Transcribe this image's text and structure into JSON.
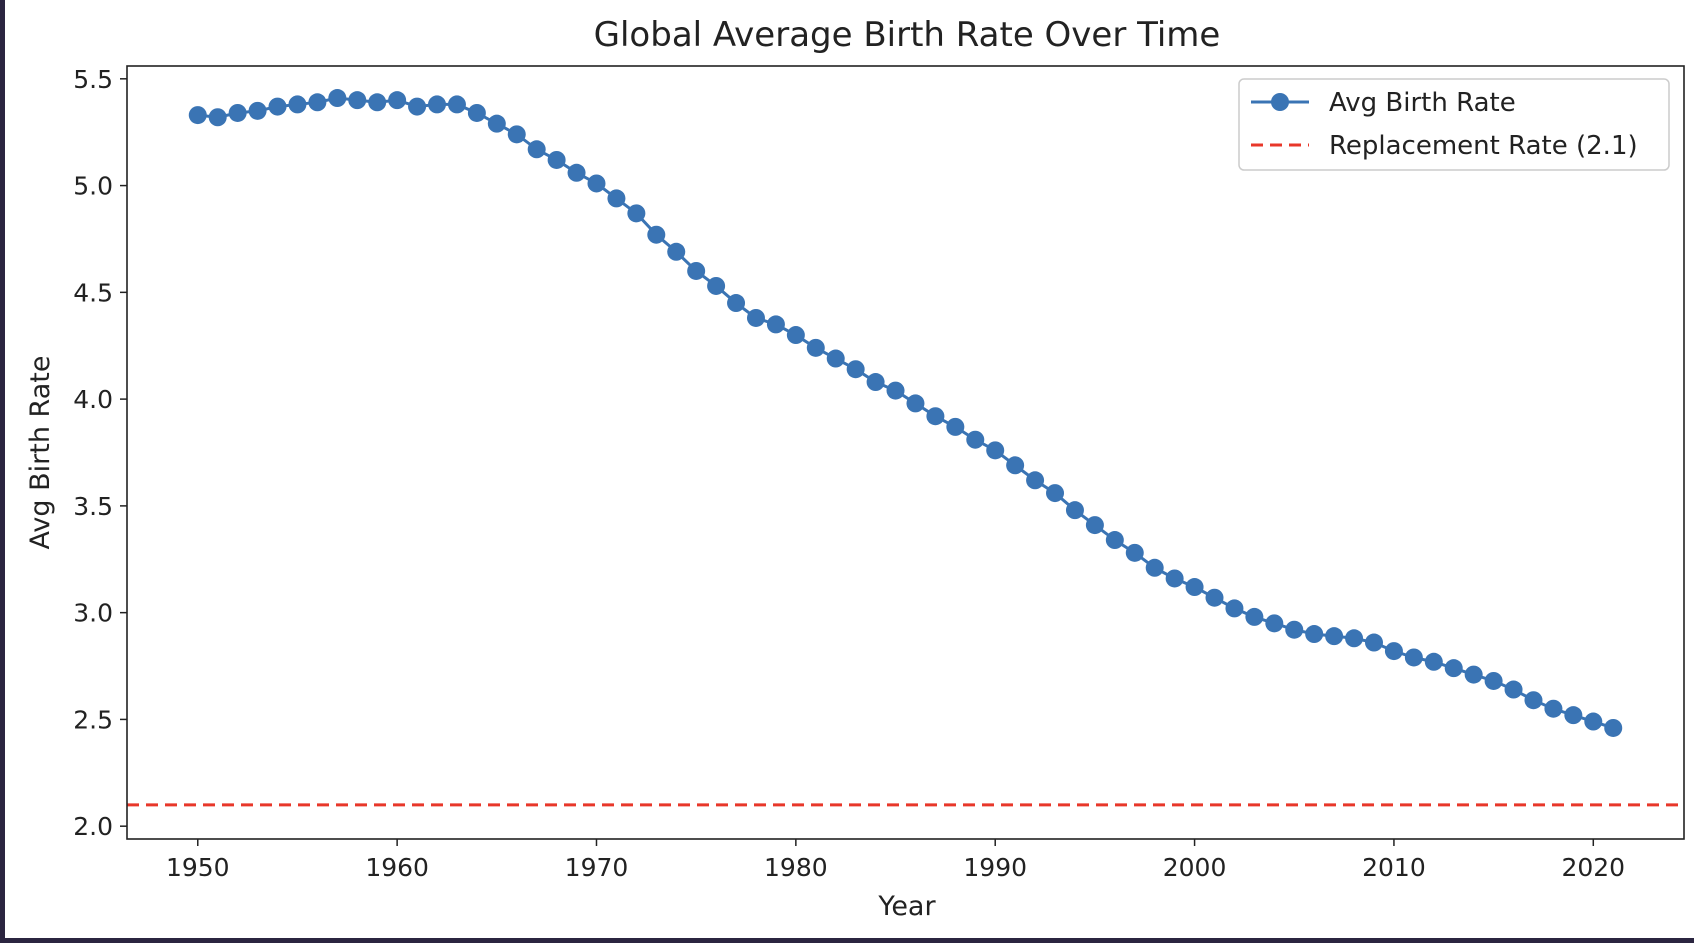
{
  "chart_data": {
    "type": "line",
    "title": "Global Average Birth Rate Over Time",
    "xlabel": "Year",
    "ylabel": "Avg Birth Rate",
    "xlim": [
      1946.45,
      2024.55
    ],
    "ylim": [
      1.94,
      5.56
    ],
    "x_ticks": [
      1950,
      1960,
      1970,
      1980,
      1990,
      2000,
      2010,
      2020
    ],
    "y_ticks": [
      2.0,
      2.5,
      3.0,
      3.5,
      4.0,
      4.5,
      5.0,
      5.5
    ],
    "y_tick_labels": [
      "2.0",
      "2.5",
      "3.0",
      "3.5",
      "4.0",
      "4.5",
      "5.0",
      "5.5"
    ],
    "grid": false,
    "legend_position": "top-right",
    "series": [
      {
        "name": "Avg Birth Rate",
        "color": "#3a74b4",
        "marker": "circle",
        "x": [
          1950,
          1951,
          1952,
          1953,
          1954,
          1955,
          1956,
          1957,
          1958,
          1959,
          1960,
          1961,
          1962,
          1963,
          1964,
          1965,
          1966,
          1967,
          1968,
          1969,
          1970,
          1971,
          1972,
          1973,
          1974,
          1975,
          1976,
          1977,
          1978,
          1979,
          1980,
          1981,
          1982,
          1983,
          1984,
          1985,
          1986,
          1987,
          1988,
          1989,
          1990,
          1991,
          1992,
          1993,
          1994,
          1995,
          1996,
          1997,
          1998,
          1999,
          2000,
          2001,
          2002,
          2003,
          2004,
          2005,
          2006,
          2007,
          2008,
          2009,
          2010,
          2011,
          2012,
          2013,
          2014,
          2015,
          2016,
          2017,
          2018,
          2019,
          2020,
          2021
        ],
        "y": [
          5.33,
          5.32,
          5.34,
          5.35,
          5.37,
          5.38,
          5.39,
          5.41,
          5.4,
          5.39,
          5.4,
          5.37,
          5.38,
          5.38,
          5.34,
          5.29,
          5.24,
          5.17,
          5.12,
          5.06,
          5.01,
          4.94,
          4.87,
          4.77,
          4.69,
          4.6,
          4.53,
          4.45,
          4.38,
          4.35,
          4.3,
          4.24,
          4.19,
          4.14,
          4.08,
          4.04,
          3.98,
          3.92,
          3.87,
          3.81,
          3.76,
          3.69,
          3.62,
          3.56,
          3.48,
          3.41,
          3.34,
          3.28,
          3.21,
          3.16,
          3.12,
          3.07,
          3.02,
          2.98,
          2.95,
          2.92,
          2.9,
          2.89,
          2.88,
          2.86,
          2.82,
          2.79,
          2.77,
          2.74,
          2.71,
          2.68,
          2.64,
          2.59,
          2.55,
          2.52,
          2.49,
          2.46
        ]
      },
      {
        "name": "Replacement Rate (2.1)",
        "color": "#e8372a",
        "style": "dashed",
        "y_constant": 2.1
      }
    ]
  }
}
